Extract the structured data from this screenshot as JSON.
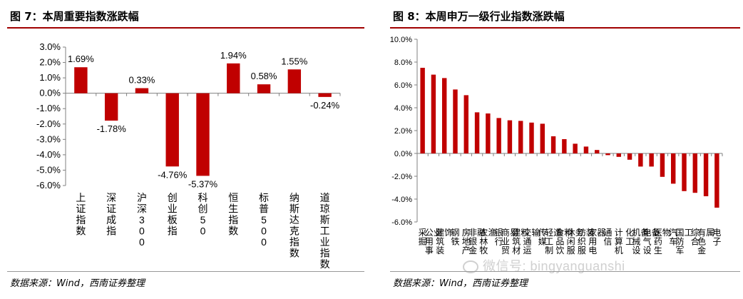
{
  "left_panel": {
    "title": "图 7：本周重要指数涨跌幅",
    "source": "数据来源：Wind，西南证券整理"
  },
  "right_panel": {
    "title": "图 8：本周申万一级行业指数涨跌幅",
    "source": "数据来源：Wind，西南证券整理",
    "watermark": "微信号: bingyanguanshi"
  },
  "colors": {
    "bar": "#c00000",
    "title_rule": "#a00000",
    "axis": "#808080"
  },
  "chart_data": [
    {
      "type": "bar",
      "title": "本周重要指数涨跌幅",
      "categories": [
        "上证指数",
        "深证成指",
        "沪深300",
        "创业板指",
        "科创50",
        "恒生指数",
        "标普500",
        "纳斯达克指数",
        "道琼斯工业指数"
      ],
      "values": [
        1.69,
        -1.78,
        0.33,
        -4.76,
        -5.37,
        1.94,
        0.58,
        1.55,
        -0.24
      ],
      "data_labels": [
        "1.69%",
        "-1.78%",
        "0.33%",
        "-4.76%",
        "-5.37%",
        "1.94%",
        "0.58%",
        "1.55%",
        "-0.24%"
      ],
      "ylim": [
        -6.0,
        3.0
      ],
      "yticks": [
        3.0,
        2.0,
        1.0,
        0.0,
        -1.0,
        -2.0,
        -3.0,
        -4.0,
        -5.0,
        -6.0
      ],
      "ytick_labels": [
        "3.0%",
        "2.0%",
        "1.0%",
        "0.0%",
        "-1.0%",
        "-2.0%",
        "-3.0%",
        "-4.0%",
        "-5.0%",
        "-6.0%"
      ],
      "xlabel": "",
      "ylabel": "",
      "grid": false
    },
    {
      "type": "bar",
      "title": "本周申万一级行业指数涨跌幅",
      "categories": [
        "采掘",
        "公用事业",
        "建筑装饰",
        "钢铁",
        "房地产",
        "非银金融",
        "农林牧渔",
        "银行",
        "商业贸易",
        "建筑材料",
        "交通运输",
        "传媒",
        "轻工制造",
        "食品饮料",
        "休闲服务",
        "纺织服装",
        "家用电器",
        "通信",
        "计算机",
        "化工",
        "机械设备",
        "电气设备",
        "医药生物",
        "汽车",
        "国防军工",
        "综合",
        "有色金属",
        "电子"
      ],
      "values": [
        7.5,
        6.9,
        6.6,
        5.6,
        5.1,
        3.6,
        3.5,
        3.1,
        2.9,
        2.85,
        2.7,
        2.6,
        1.5,
        1.25,
        0.85,
        0.6,
        0.3,
        -0.15,
        -0.3,
        -0.55,
        -1.15,
        -1.15,
        -2.05,
        -2.65,
        -3.3,
        -3.45,
        -3.75,
        -4.75
      ],
      "ylim": [
        -6.0,
        10.0
      ],
      "yticks": [
        10.0,
        8.0,
        6.0,
        4.0,
        2.0,
        0.0,
        -2.0,
        -4.0,
        -6.0
      ],
      "ytick_labels": [
        "10.0%",
        "8.0%",
        "6.0%",
        "4.0%",
        "2.0%",
        "0.0%",
        "-2.0%",
        "-4.0%",
        "-6.0%"
      ],
      "xlabel": "",
      "ylabel": "",
      "grid": false
    }
  ]
}
